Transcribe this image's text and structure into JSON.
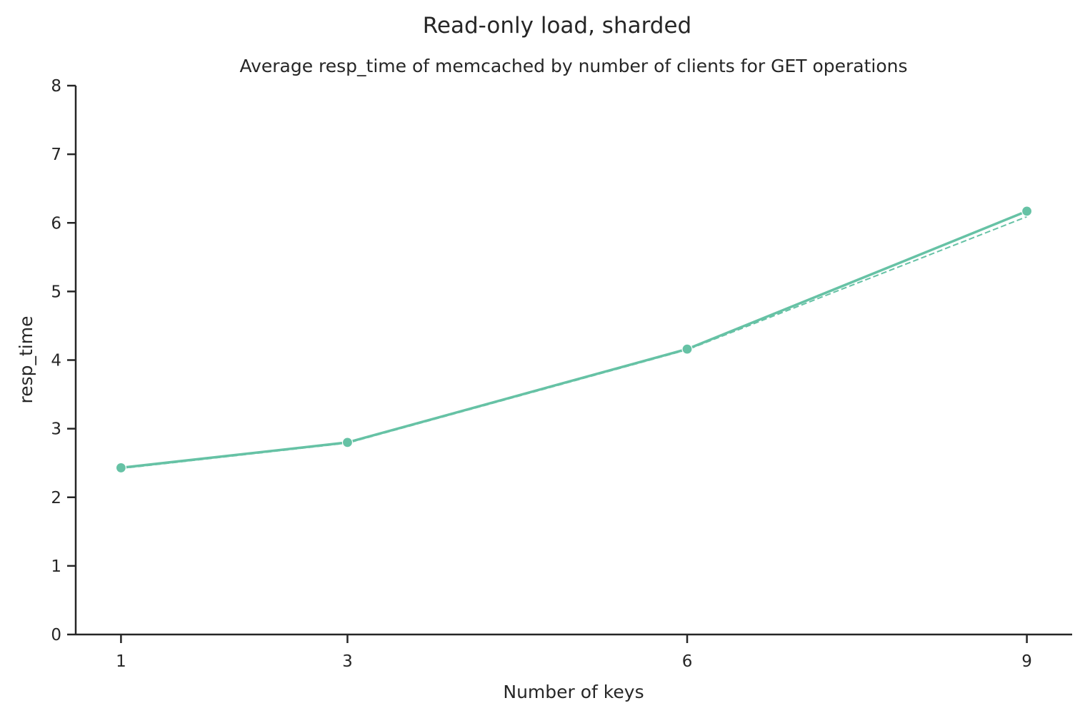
{
  "chart_data": {
    "type": "line",
    "suptitle": "Read-only load, sharded",
    "title": "Average resp_time of memcached by number of clients for GET operations",
    "xlabel": "Number of keys",
    "ylabel": "resp_time",
    "x": [
      1,
      3,
      6,
      9
    ],
    "xticks": [
      "1",
      "3",
      "6",
      "9"
    ],
    "xlim": [
      0.6,
      9.4
    ],
    "yticks": [
      "0",
      "1",
      "2",
      "3",
      "4",
      "5",
      "6",
      "7",
      "8"
    ],
    "ylim": [
      0,
      8
    ],
    "grid": false,
    "legend": "none",
    "series": [
      {
        "style": "solid",
        "markers": true,
        "color": "#66c2a5",
        "values": [
          2.43,
          2.8,
          4.16,
          6.17
        ]
      },
      {
        "style": "dashed",
        "markers": false,
        "color": "#66c2a5",
        "values": [
          2.42,
          2.79,
          4.15,
          6.09
        ]
      }
    ]
  }
}
